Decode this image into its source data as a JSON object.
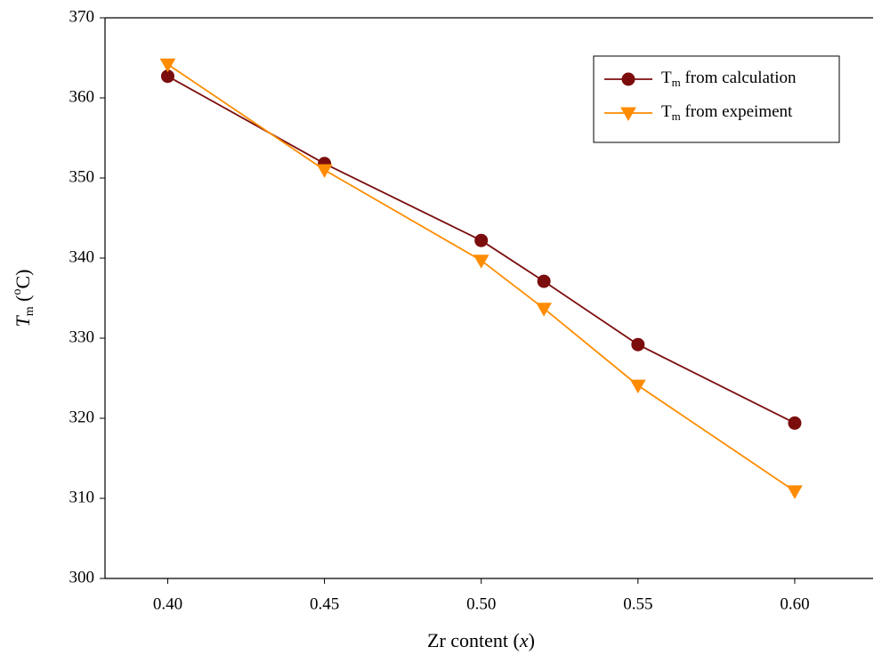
{
  "chart_data": {
    "type": "line",
    "xlabel": {
      "text": "Zr content (",
      "italic": "x",
      "close": ")"
    },
    "ylabel": {
      "italic": "T",
      "sub": "m",
      "open": " (",
      "sup": "o",
      "unit": "C)"
    },
    "x": [
      0.4,
      0.45,
      0.5,
      0.52,
      0.55,
      0.6
    ],
    "series": [
      {
        "name": "Tm from calculation",
        "color": "#7b0d0d",
        "marker": "circle",
        "values": [
          362.7,
          351.8,
          342.2,
          337.1,
          329.2,
          319.4
        ]
      },
      {
        "name": "Tm from expeiment",
        "color": "#ff8c00",
        "marker": "triangle-down",
        "values": [
          364.2,
          351.0,
          339.7,
          333.7,
          324.1,
          310.9
        ]
      }
    ],
    "xlim": [
      0.38,
      0.625
    ],
    "xticks": [
      {
        "value": 0.4,
        "label": "0.40"
      },
      {
        "value": 0.45,
        "label": "0.45"
      },
      {
        "value": 0.5,
        "label": "0.50"
      },
      {
        "value": 0.55,
        "label": "0.55"
      },
      {
        "value": 0.6,
        "label": "0.60"
      }
    ],
    "ylim": [
      300,
      370
    ],
    "yticks": [
      300,
      310,
      320,
      330,
      340,
      350,
      360,
      370
    ],
    "legend": "upper right"
  }
}
